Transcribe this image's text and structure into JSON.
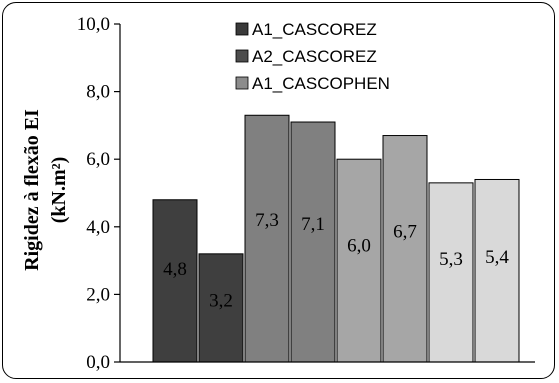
{
  "chart_data": {
    "type": "bar",
    "title": "",
    "xlabel": "",
    "ylabel": "Rigidez à flexão EI",
    "ylabel_unit": "(kN.m²)",
    "ylim": [
      0,
      10
    ],
    "yticks": [
      "0,0",
      "2,0",
      "4,0",
      "6,0",
      "8,0",
      "10,0"
    ],
    "ytick_values": [
      0,
      2,
      4,
      6,
      8,
      10
    ],
    "grid": false,
    "legend_position": "top",
    "legend": [
      {
        "name": "A1_CASCOREZ",
        "color": "#3a3a3a"
      },
      {
        "name": "A2_CASCOREZ",
        "color": "#4d4d4d"
      },
      {
        "name": "A1_CASCOPHEN",
        "color": "#8c8c8c"
      }
    ],
    "bars": [
      {
        "value": 4.8,
        "label": "4,8",
        "color": "#3f3f3f"
      },
      {
        "value": 3.2,
        "label": "3,2",
        "color": "#3f3f3f"
      },
      {
        "value": 7.3,
        "label": "7,3",
        "color": "#808080"
      },
      {
        "value": 7.1,
        "label": "7,1",
        "color": "#808080"
      },
      {
        "value": 6.0,
        "label": "6,0",
        "color": "#a6a6a6"
      },
      {
        "value": 6.7,
        "label": "6,7",
        "color": "#a6a6a6"
      },
      {
        "value": 5.3,
        "label": "5,3",
        "color": "#d9d9d9"
      },
      {
        "value": 5.4,
        "label": "5,4",
        "color": "#d9d9d9"
      }
    ]
  }
}
